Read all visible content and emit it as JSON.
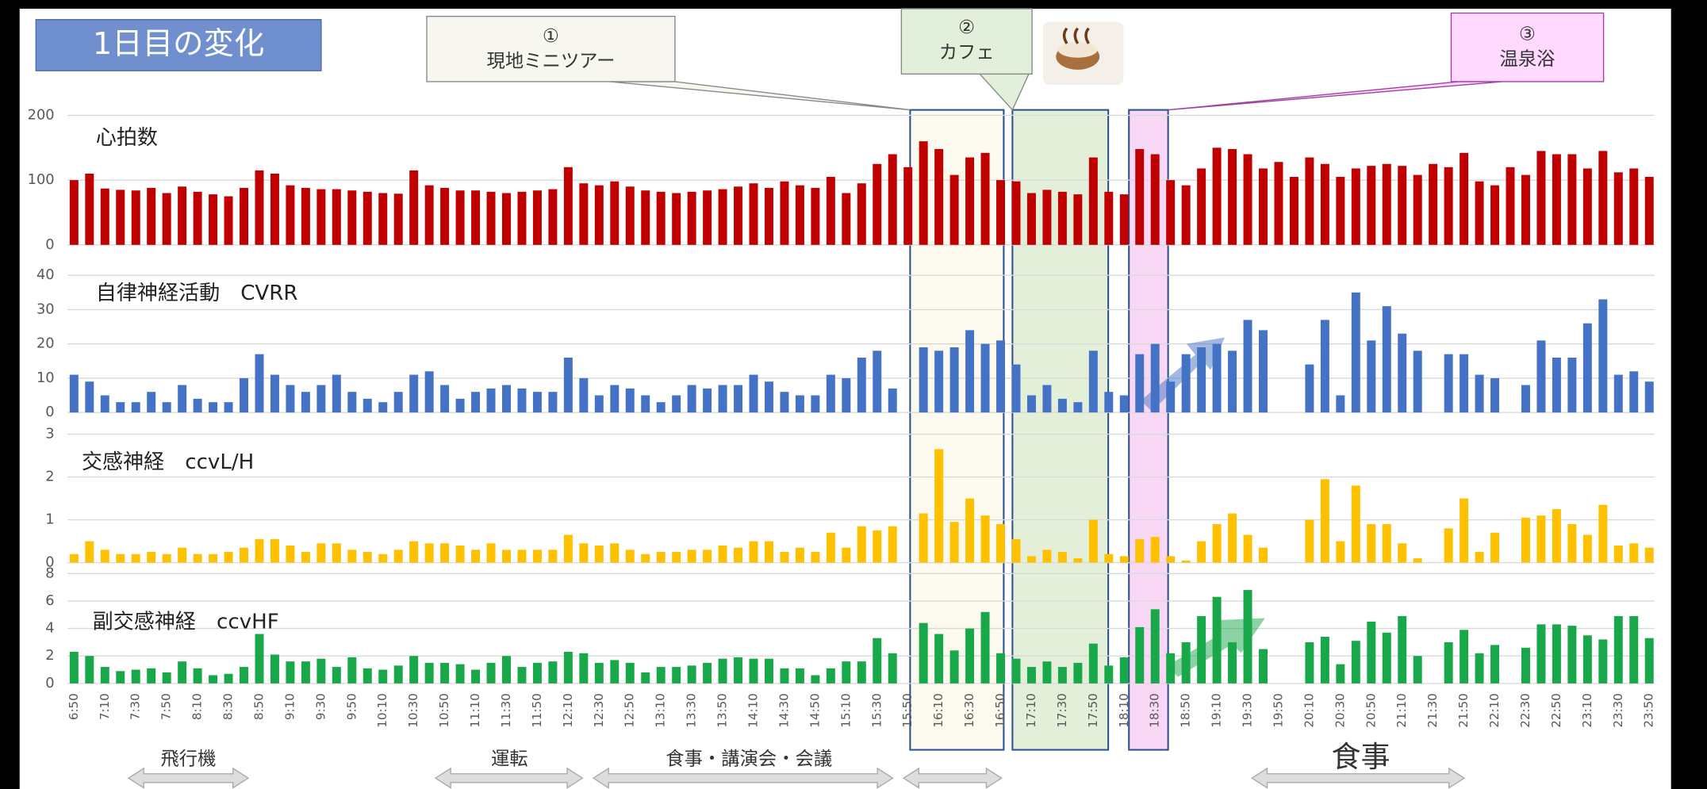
{
  "chart_data": {
    "type": "bar",
    "title": "1日目の変化",
    "categories": [
      "6:50",
      null,
      "7:10",
      null,
      "7:30",
      null,
      "7:50",
      null,
      "8:10",
      null,
      "8:30",
      null,
      "8:50",
      null,
      "9:10",
      null,
      "9:30",
      null,
      "9:50",
      null,
      "10:10",
      null,
      "10:30",
      null,
      "10:50",
      null,
      "11:10",
      null,
      "11:30",
      null,
      "11:50",
      null,
      "12:10",
      null,
      "12:30",
      null,
      "12:50",
      null,
      "13:10",
      null,
      "13:30",
      null,
      "13:50",
      null,
      "14:10",
      null,
      "14:30",
      null,
      "14:50",
      null,
      "15:10",
      null,
      "15:30",
      null,
      "15:50",
      null,
      "16:10",
      null,
      "16:30",
      null,
      "16:50",
      null,
      "17:10",
      null,
      "17:30",
      null,
      "17:50",
      null,
      "18:10",
      null,
      "18:30",
      null,
      "18:50",
      null,
      "19:10",
      null,
      "19:30",
      null,
      "19:50",
      null,
      "20:10",
      null,
      "20:30",
      null,
      "20:50",
      null,
      "21:10",
      null,
      "21:30",
      null,
      "21:50",
      null,
      "22:10",
      null,
      "22:30",
      null,
      "22:50",
      null,
      "23:10",
      null,
      "23:30",
      null,
      "23:50"
    ],
    "series": [
      {
        "name": "心拍数",
        "color": "#c00000",
        "ylim": [
          0,
          200
        ],
        "yticks": [
          0,
          100,
          200
        ],
        "values": [
          100,
          110,
          87,
          85,
          84,
          88,
          80,
          90,
          82,
          78,
          75,
          88,
          115,
          110,
          92,
          88,
          86,
          86,
          84,
          82,
          80,
          79,
          115,
          92,
          88,
          84,
          84,
          82,
          80,
          82,
          84,
          86,
          120,
          95,
          92,
          98,
          90,
          84,
          82,
          80,
          82,
          84,
          86,
          90,
          95,
          88,
          98,
          92,
          88,
          105,
          80,
          95,
          125,
          140,
          120,
          160,
          148,
          108,
          135,
          142,
          100,
          98,
          80,
          85,
          82,
          78,
          135,
          82,
          78,
          148,
          140,
          100,
          92,
          118,
          150,
          148,
          140,
          118,
          128,
          105,
          135,
          125,
          105,
          118,
          122,
          125,
          122,
          108,
          125,
          120,
          142,
          98,
          92,
          120,
          108,
          145,
          140,
          140,
          118,
          145,
          112,
          118,
          105
        ]
      },
      {
        "name": "自律神経活動　CVRR",
        "color": "#4472c4",
        "ylim": [
          0,
          40
        ],
        "yticks": [
          0,
          10,
          20,
          30,
          40
        ],
        "values": [
          11,
          9,
          5,
          3,
          3,
          6,
          3,
          8,
          4,
          3,
          3,
          10,
          17,
          11,
          8,
          6,
          8,
          11,
          6,
          4,
          3,
          6,
          11,
          12,
          8,
          4,
          6,
          7,
          8,
          7,
          6,
          6,
          16,
          10,
          5,
          8,
          7,
          5,
          3,
          5,
          8,
          7,
          8,
          8,
          11,
          9,
          6,
          5,
          5,
          11,
          10,
          16,
          18,
          7,
          null,
          19,
          18,
          19,
          24,
          20,
          21,
          14,
          5,
          8,
          4,
          3,
          18,
          6,
          5,
          17,
          20,
          9,
          17,
          19,
          20,
          18,
          27,
          24,
          null,
          null,
          14,
          27,
          5,
          35,
          21,
          31,
          23,
          18,
          null,
          17,
          17,
          11,
          10,
          null,
          8,
          21,
          16,
          16,
          26,
          33,
          11,
          12,
          9
        ]
      },
      {
        "name": "交感神経　ccvL/H",
        "color": "#ffc000",
        "ylim": [
          0,
          3
        ],
        "yticks": [
          0,
          1,
          2,
          3
        ],
        "values": [
          0.2,
          0.5,
          0.3,
          0.2,
          0.2,
          0.25,
          0.2,
          0.35,
          0.2,
          0.2,
          0.25,
          0.35,
          0.55,
          0.55,
          0.4,
          0.25,
          0.45,
          0.45,
          0.3,
          0.25,
          0.2,
          0.3,
          0.5,
          0.45,
          0.45,
          0.4,
          0.3,
          0.45,
          0.3,
          0.3,
          0.3,
          0.3,
          0.65,
          0.45,
          0.4,
          0.45,
          0.3,
          0.2,
          0.25,
          0.25,
          0.3,
          0.3,
          0.4,
          0.35,
          0.5,
          0.5,
          0.25,
          0.35,
          0.25,
          0.7,
          0.35,
          0.85,
          0.75,
          0.85,
          null,
          1.15,
          2.65,
          0.95,
          1.5,
          1.1,
          0.9,
          0.55,
          0.15,
          0.3,
          0.25,
          0.1,
          1.0,
          0.2,
          0.15,
          0.55,
          0.6,
          0.15,
          0.05,
          0.5,
          0.9,
          1.15,
          0.65,
          0.35,
          null,
          null,
          1.0,
          1.95,
          0.5,
          1.8,
          0.9,
          0.9,
          0.45,
          0.1,
          null,
          0.8,
          1.5,
          0.25,
          0.7,
          null,
          1.05,
          1.1,
          1.25,
          0.9,
          0.65,
          1.35,
          0.4,
          0.45,
          0.35
        ]
      },
      {
        "name": "副交感神経　ccvHF",
        "color": "#18a84a",
        "ylim": [
          0,
          8
        ],
        "yticks": [
          0,
          2,
          4,
          6,
          8
        ],
        "values": [
          2.3,
          2.0,
          1.2,
          0.9,
          1.0,
          1.1,
          0.8,
          1.6,
          1.1,
          0.6,
          0.7,
          1.2,
          3.6,
          2.1,
          1.6,
          1.6,
          1.8,
          1.2,
          1.9,
          1.1,
          1.0,
          1.3,
          2.0,
          1.5,
          1.5,
          1.4,
          1.0,
          1.5,
          2.0,
          1.2,
          1.5,
          1.6,
          2.3,
          2.2,
          1.5,
          1.7,
          1.5,
          0.8,
          1.2,
          1.2,
          1.3,
          1.5,
          1.8,
          1.9,
          1.8,
          1.8,
          1.1,
          1.1,
          0.6,
          1.1,
          1.6,
          1.6,
          3.3,
          2.2,
          null,
          4.4,
          3.6,
          2.4,
          4.0,
          5.2,
          2.2,
          1.8,
          1.2,
          1.6,
          1.2,
          1.5,
          2.9,
          1.3,
          1.9,
          4.1,
          5.4,
          2.2,
          3.0,
          4.9,
          6.3,
          3.0,
          6.8,
          2.5,
          null,
          null,
          3.0,
          3.4,
          1.4,
          3.1,
          4.5,
          3.7,
          4.9,
          2.0,
          null,
          3.0,
          3.9,
          2.2,
          2.8,
          null,
          2.6,
          4.3,
          4.3,
          4.2,
          3.5,
          3.2,
          4.9,
          4.9,
          3.3
        ]
      }
    ],
    "annotations": [
      {
        "number": "①",
        "label": "現地ミニツアー"
      },
      {
        "number": "②",
        "label": "カフェ"
      },
      {
        "number": "③",
        "label": "温泉浴"
      }
    ],
    "activities": [
      "飛行機",
      "運転",
      "食事・講演会・会議",
      "食事"
    ]
  }
}
